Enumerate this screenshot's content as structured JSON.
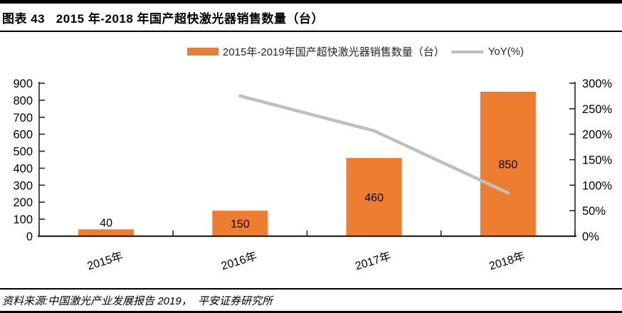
{
  "header": {
    "title": "图表 43   2015 年-2018 年国产超快激光器销售数量（台）"
  },
  "footer": {
    "source": "资料来源:中国激光产业发展报告 2019，  平安证券研究所"
  },
  "colors": {
    "bar": "#ED7D31",
    "line": "#BFBFBF",
    "axis": "#262626",
    "text": "#000000"
  },
  "chart_data": {
    "type": "bar",
    "title": "2015 年-2018 年国产超快激光器销售数量（台）",
    "categories": [
      "2015年",
      "2016年",
      "2017年",
      "2018年"
    ],
    "series": [
      {
        "name": "2015年-2019年国产超快激光器销售数量（台）",
        "type": "bar",
        "axis": "left",
        "color": "#ED7D31",
        "values": [
          40,
          150,
          460,
          850
        ],
        "data_labels": [
          "40",
          "150",
          "460",
          "850"
        ]
      },
      {
        "name": "YoY(%)",
        "type": "line",
        "axis": "right",
        "color": "#BFBFBF",
        "values": [
          null,
          275,
          206.7,
          84.8
        ]
      }
    ],
    "left_axis": {
      "min": 0,
      "max": 900,
      "step": 100,
      "tick_labels": [
        "0",
        "100",
        "200",
        "300",
        "400",
        "500",
        "600",
        "700",
        "800",
        "900"
      ]
    },
    "right_axis": {
      "min": 0,
      "max": 300,
      "step": 50,
      "tick_labels": [
        "0%",
        "50%",
        "100%",
        "150%",
        "200%",
        "250%",
        "300%"
      ]
    },
    "xlabel": "",
    "ylabel": "",
    "grid": false,
    "legend_position": "top"
  }
}
